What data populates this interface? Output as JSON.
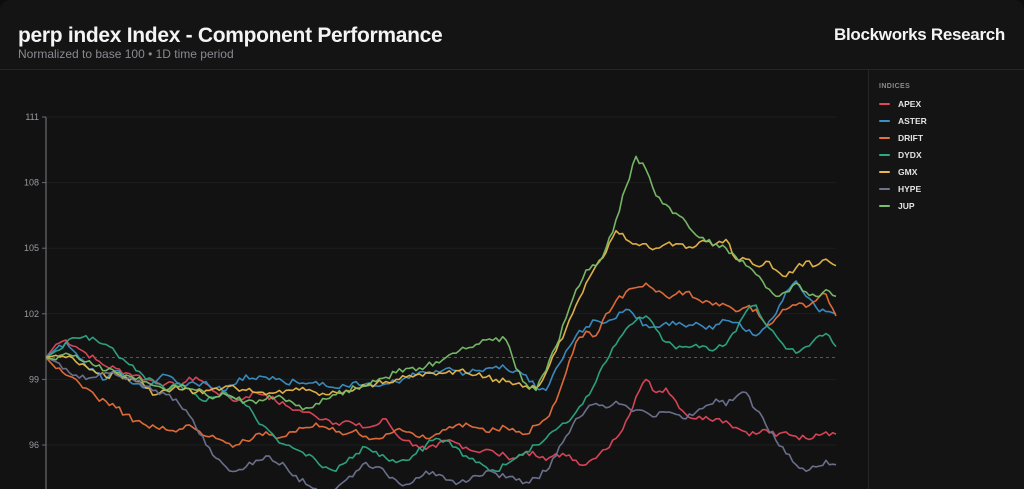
{
  "header": {
    "title": "perp index Index - Component Performance",
    "subtitle": "Normalized to base 100 • 1D time period",
    "brand": "Blockworks Research"
  },
  "legend": {
    "title": "INDICES",
    "items": [
      {
        "label": "APEX",
        "color": "#e0475a"
      },
      {
        "label": "ASTER",
        "color": "#3b8fc4"
      },
      {
        "label": "DRIFT",
        "color": "#e8703a"
      },
      {
        "label": "DYDX",
        "color": "#2fa883"
      },
      {
        "label": "GMX",
        "color": "#e8b84a"
      },
      {
        "label": "HYPE",
        "color": "#6f7590"
      },
      {
        "label": "JUP",
        "color": "#7bbf6a"
      }
    ]
  },
  "chart_data": {
    "type": "line",
    "title": "perp index Index - Component Performance",
    "subtitle": "Normalized to base 100 • 1D time period",
    "xlabel": "",
    "ylabel": "",
    "ylim": [
      94.5,
      111
    ],
    "yticks": [
      96,
      99,
      102,
      105,
      108,
      111
    ],
    "baseline": 100,
    "grid": true,
    "legend_position": "right",
    "x_points": 80,
    "series": [
      {
        "name": "APEX",
        "color": "#e0475a",
        "values": [
          100,
          100.6,
          100.8,
          100.5,
          100.2,
          99.9,
          99.6,
          99.5,
          99.3,
          99.2,
          99.0,
          98.9,
          98.8,
          98.7,
          98.9,
          99.1,
          98.8,
          98.4,
          98.3,
          98.0,
          98.2,
          98.4,
          98.3,
          98.0,
          97.8,
          97.6,
          97.5,
          97.3,
          97.2,
          97.0,
          97.1,
          96.9,
          96.8,
          96.9,
          97.2,
          96.5,
          96.2,
          96.0,
          95.8,
          95.9,
          96.2,
          96.1,
          95.9,
          95.7,
          95.8,
          95.6,
          95.5,
          95.4,
          95.7,
          95.5,
          95.3,
          95.6,
          95.5,
          95.3,
          95.1,
          95.4,
          95.8,
          96.3,
          97.1,
          98.2,
          99.0,
          98.4,
          98.6,
          98.0,
          97.4,
          97.2,
          97.3,
          97.2,
          97.1,
          96.8,
          96.6,
          96.5,
          96.7,
          96.4,
          96.6,
          96.4,
          96.3,
          96.5,
          96.6,
          96.5
        ]
      },
      {
        "name": "ASTER",
        "color": "#3b8fc4",
        "values": [
          100,
          100.4,
          100.7,
          100.2,
          99.6,
          99.3,
          99.0,
          99.4,
          99.1,
          98.8,
          98.6,
          98.9,
          99.2,
          98.9,
          98.7,
          98.8,
          98.9,
          98.6,
          98.5,
          98.8,
          99.2,
          99.0,
          99.1,
          99.0,
          98.8,
          98.9,
          98.8,
          98.9,
          98.7,
          98.6,
          98.7,
          98.9,
          98.8,
          98.7,
          98.8,
          98.9,
          99.1,
          99.2,
          99.3,
          99.4,
          99.5,
          99.4,
          99.3,
          99.4,
          99.5,
          99.6,
          99.5,
          99.4,
          99.2,
          98.6,
          98.5,
          99.5,
          100.3,
          101.0,
          101.4,
          101.7,
          101.6,
          101.8,
          102.2,
          101.8,
          101.5,
          101.4,
          101.6,
          101.5,
          101.4,
          101.6,
          101.3,
          101.5,
          101.7,
          101.6,
          101.2,
          101.0,
          101.4,
          102.0,
          103.0,
          103.5,
          102.8,
          102.3,
          102.1,
          102.0
        ]
      },
      {
        "name": "DRIFT",
        "color": "#e8703a",
        "values": [
          100,
          99.5,
          99.2,
          99.0,
          98.6,
          98.2,
          98.0,
          97.7,
          97.4,
          97.1,
          96.9,
          96.8,
          96.7,
          96.6,
          96.9,
          96.7,
          96.4,
          96.3,
          96.1,
          96.0,
          96.2,
          96.5,
          96.6,
          96.3,
          96.4,
          96.6,
          96.8,
          97.0,
          96.8,
          96.6,
          96.5,
          96.7,
          96.4,
          96.3,
          96.5,
          96.7,
          96.6,
          96.4,
          96.3,
          96.5,
          96.7,
          96.9,
          97.0,
          96.8,
          96.6,
          96.7,
          96.8,
          96.6,
          96.5,
          96.9,
          97.2,
          98.0,
          99.3,
          100.7,
          101.2,
          101.0,
          102.0,
          102.6,
          103.0,
          103.2,
          103.4,
          103.0,
          102.8,
          102.9,
          103.0,
          102.7,
          102.6,
          102.5,
          102.4,
          102.1,
          102.3,
          102.2,
          101.5,
          101.8,
          102.2,
          102.4,
          102.3,
          102.6,
          102.9,
          101.9
        ]
      },
      {
        "name": "DYDX",
        "color": "#2fa883",
        "values": [
          100,
          100.3,
          100.7,
          100.9,
          101.0,
          100.8,
          100.6,
          100.2,
          99.8,
          99.4,
          99.0,
          98.8,
          98.5,
          98.8,
          98.6,
          98.3,
          98.0,
          98.2,
          98.4,
          98.1,
          97.8,
          97.2,
          96.8,
          96.3,
          96.0,
          95.8,
          95.5,
          95.3,
          95.0,
          94.8,
          95.2,
          95.6,
          95.9,
          95.7,
          95.4,
          95.2,
          95.3,
          95.6,
          96.0,
          96.3,
          96.2,
          95.9,
          95.5,
          95.2,
          95.0,
          94.8,
          95.1,
          95.4,
          95.7,
          96.0,
          96.3,
          96.7,
          97.0,
          97.5,
          98.2,
          98.9,
          99.8,
          100.6,
          101.3,
          101.7,
          101.9,
          101.3,
          100.7,
          100.4,
          100.5,
          100.6,
          100.5,
          100.4,
          100.6,
          101.2,
          102.1,
          102.4,
          101.5,
          101.0,
          100.4,
          100.2,
          100.5,
          100.9,
          101.1,
          100.5
        ]
      },
      {
        "name": "GMX",
        "color": "#e8b84a",
        "values": [
          100,
          100.1,
          100.0,
          99.8,
          99.6,
          99.3,
          99.1,
          99.3,
          99.1,
          98.9,
          98.6,
          98.3,
          98.5,
          98.7,
          98.6,
          98.4,
          98.5,
          98.6,
          98.7,
          98.6,
          98.5,
          98.4,
          98.3,
          98.4,
          98.5,
          98.6,
          98.5,
          98.4,
          98.3,
          98.4,
          98.5,
          98.6,
          98.7,
          98.8,
          98.9,
          99.0,
          99.1,
          99.2,
          99.3,
          99.2,
          99.3,
          99.4,
          99.3,
          99.2,
          99.1,
          99.0,
          98.9,
          98.8,
          98.7,
          98.6,
          99.3,
          100.3,
          101.3,
          102.4,
          103.4,
          104.2,
          104.8,
          105.8,
          105.4,
          105.2,
          105.2,
          105.0,
          105.2,
          105.2,
          105.0,
          105.1,
          105.3,
          105.2,
          105.4,
          104.5,
          104.5,
          104.2,
          104.4,
          104.0,
          103.7,
          104.1,
          104.4,
          104.2,
          104.5,
          104.2
        ]
      },
      {
        "name": "HYPE",
        "color": "#6f7590",
        "values": [
          100,
          99.8,
          99.5,
          99.2,
          99.0,
          99.1,
          99.3,
          99.2,
          99.0,
          98.9,
          98.7,
          98.5,
          98.3,
          98.1,
          97.6,
          96.8,
          96.0,
          95.4,
          95.0,
          94.8,
          95.0,
          95.3,
          95.5,
          95.2,
          95.0,
          94.6,
          94.2,
          94.0,
          93.8,
          94.0,
          94.4,
          94.8,
          95.2,
          95.0,
          94.7,
          94.4,
          94.2,
          94.5,
          94.8,
          94.6,
          94.4,
          94.2,
          94.3,
          94.6,
          94.8,
          94.7,
          94.5,
          94.4,
          94.3,
          94.5,
          94.8,
          95.5,
          96.4,
          97.2,
          97.6,
          97.9,
          97.7,
          98.0,
          97.8,
          97.6,
          97.5,
          97.3,
          97.5,
          97.4,
          97.2,
          97.5,
          97.8,
          98.1,
          97.8,
          98.2,
          98.4,
          97.6,
          96.9,
          96.2,
          95.6,
          95.1,
          94.8,
          95.0,
          95.3,
          95.1
        ]
      },
      {
        "name": "JUP",
        "color": "#7bbf6a",
        "values": [
          100,
          99.9,
          100.2,
          100.1,
          99.8,
          99.6,
          99.4,
          99.3,
          99.2,
          99.0,
          98.9,
          98.7,
          98.5,
          98.7,
          98.6,
          98.5,
          98.3,
          98.2,
          98.3,
          98.1,
          98.0,
          97.9,
          98.1,
          98.2,
          98.0,
          97.8,
          97.7,
          97.9,
          98.1,
          98.3,
          98.5,
          98.6,
          98.7,
          98.9,
          99.1,
          99.3,
          99.5,
          99.4,
          99.6,
          99.8,
          100.0,
          100.2,
          100.4,
          100.6,
          100.8,
          100.9,
          100.8,
          99.5,
          98.8,
          98.5,
          99.4,
          100.5,
          101.8,
          103.1,
          104.0,
          104.2,
          105.0,
          106.3,
          107.8,
          109.2,
          108.6,
          107.4,
          107.0,
          106.6,
          106.2,
          105.6,
          105.3,
          105.2,
          105.0,
          104.6,
          104.2,
          103.8,
          103.2,
          102.8,
          103.0,
          103.4,
          103.0,
          102.8,
          103.1,
          102.8
        ]
      }
    ]
  }
}
